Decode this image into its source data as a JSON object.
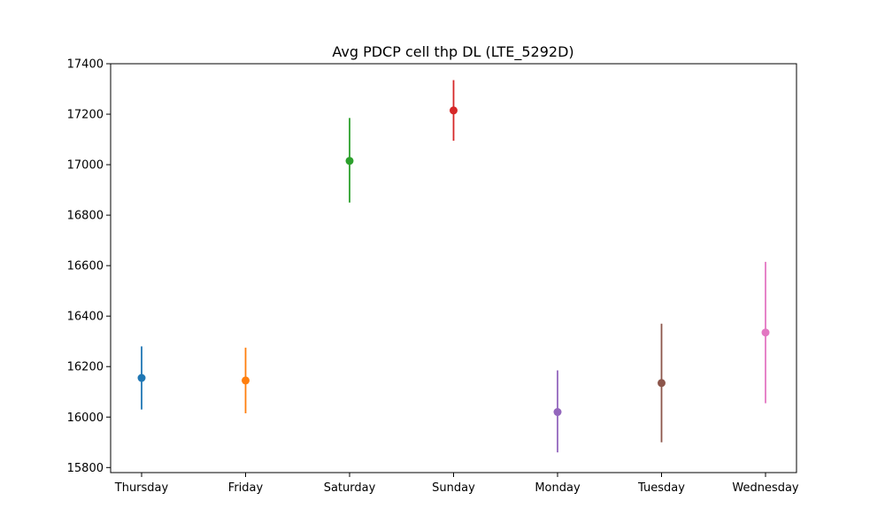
{
  "chart_data": {
    "type": "scatter",
    "title": "Avg PDCP cell thp DL (LTE_5292D)",
    "xlabel": "",
    "ylabel": "",
    "categories": [
      "Thursday",
      "Friday",
      "Saturday",
      "Sunday",
      "Monday",
      "Tuesday",
      "Wednesday"
    ],
    "ylim": [
      15780,
      17400
    ],
    "yticks": [
      15800,
      16000,
      16200,
      16400,
      16600,
      16800,
      17000,
      17200,
      17400
    ],
    "grid": false,
    "legend": "none",
    "series": [
      {
        "category": "Thursday",
        "value": 16155,
        "low": 16030,
        "high": 16280,
        "color": "#1f77b4"
      },
      {
        "category": "Friday",
        "value": 16145,
        "low": 16015,
        "high": 16275,
        "color": "#ff7f0e"
      },
      {
        "category": "Saturday",
        "value": 17015,
        "low": 16850,
        "high": 17185,
        "color": "#2ca02c"
      },
      {
        "category": "Sunday",
        "value": 17215,
        "low": 17095,
        "high": 17335,
        "color": "#d62728"
      },
      {
        "category": "Monday",
        "value": 16020,
        "low": 15860,
        "high": 16185,
        "color": "#9467bd"
      },
      {
        "category": "Tuesday",
        "value": 16135,
        "low": 15900,
        "high": 16370,
        "color": "#8c564b"
      },
      {
        "category": "Wednesday",
        "value": 16335,
        "low": 16055,
        "high": 16615,
        "color": "#e377c2"
      }
    ]
  }
}
